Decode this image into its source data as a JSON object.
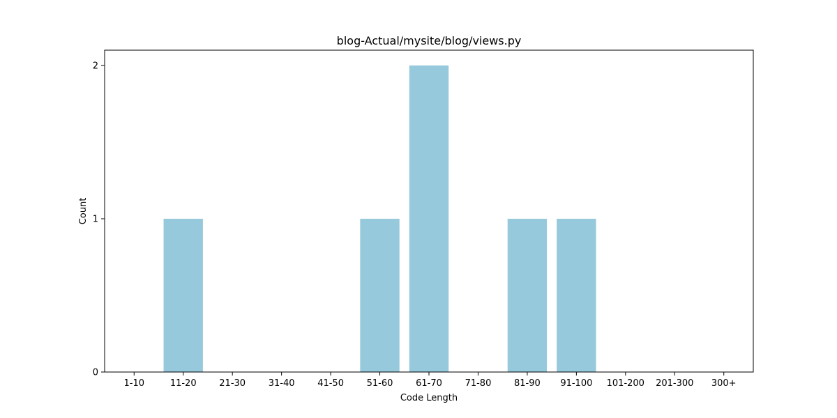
{
  "chart_data": {
    "type": "bar",
    "title": "blog-Actual/mysite/blog/views.py",
    "xlabel": "Code Length",
    "ylabel": "Count",
    "categories": [
      "1-10",
      "11-20",
      "21-30",
      "31-40",
      "41-50",
      "51-60",
      "61-70",
      "71-80",
      "81-90",
      "91-100",
      "101-200",
      "201-300",
      "300+"
    ],
    "values": [
      0,
      1,
      0,
      0,
      0,
      1,
      2,
      0,
      1,
      1,
      0,
      0,
      0
    ],
    "yticks": [
      "0",
      "1",
      "2"
    ],
    "ylim": [
      0,
      2.1
    ],
    "grid": false,
    "bar_color": "#96c9dc"
  }
}
